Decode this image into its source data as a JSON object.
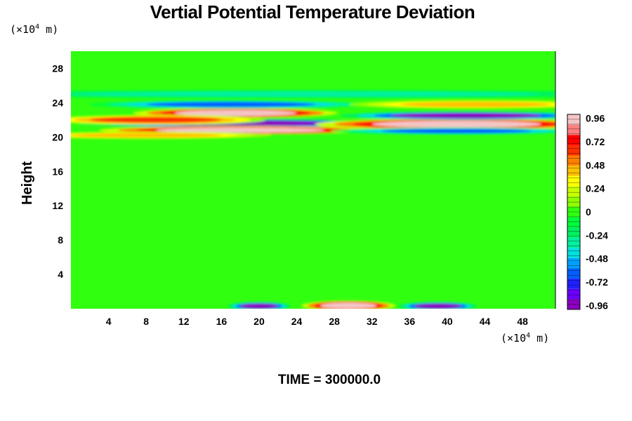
{
  "title": "Vertial Potential Temperature Deviation",
  "time_label": "TIME = 300000.0",
  "chart_data": {
    "type": "heatmap",
    "title": "Vertial Potential Temperature Deviation",
    "xlabel": "",
    "ylabel": "Height",
    "x_unit": {
      "prefix": "(×10",
      "exp": "4",
      "suffix": " m)"
    },
    "y_unit": {
      "prefix": "(×10",
      "exp": "4",
      "suffix": " m)"
    },
    "xlim": [
      0,
      51.5
    ],
    "ylim": [
      0,
      30
    ],
    "x_ticks": [
      4,
      8,
      12,
      16,
      20,
      24,
      28,
      32,
      36,
      40,
      44,
      48
    ],
    "y_ticks": [
      4,
      8,
      12,
      16,
      20,
      24,
      28
    ],
    "background_value": 0,
    "features": [
      {
        "x_center": 17.5,
        "y_center": 22.8,
        "x_halfwidth": 6.5,
        "y_halfwidth": 0.35,
        "value": 0.96
      },
      {
        "x_center": 17.0,
        "y_center": 23.8,
        "x_halfwidth": 9.0,
        "y_halfwidth": 0.3,
        "value": -0.6
      },
      {
        "x_center": 17.5,
        "y_center": 21.6,
        "x_halfwidth": 10.0,
        "y_halfwidth": 0.3,
        "value": -0.96
      },
      {
        "x_center": 18.0,
        "y_center": 20.8,
        "x_halfwidth": 9.0,
        "y_halfwidth": 0.3,
        "value": 0.96
      },
      {
        "x_center": 9.0,
        "y_center": 22.0,
        "x_halfwidth": 7.0,
        "y_halfwidth": 0.35,
        "value": 0.6
      },
      {
        "x_center": 8.0,
        "y_center": 20.2,
        "x_halfwidth": 8.0,
        "y_halfwidth": 0.25,
        "value": 0.4
      },
      {
        "x_center": 41.0,
        "y_center": 21.5,
        "x_halfwidth": 9.0,
        "y_halfwidth": 0.4,
        "value": 0.96
      },
      {
        "x_center": 42.0,
        "y_center": 22.5,
        "x_halfwidth": 8.0,
        "y_halfwidth": 0.3,
        "value": -0.9
      },
      {
        "x_center": 41.0,
        "y_center": 20.7,
        "x_halfwidth": 8.0,
        "y_halfwidth": 0.25,
        "value": -0.6
      },
      {
        "x_center": 43.0,
        "y_center": 23.8,
        "x_halfwidth": 8.0,
        "y_halfwidth": 0.3,
        "value": 0.4
      },
      {
        "x_center": 25.0,
        "y_center": 25.0,
        "x_halfwidth": 25.0,
        "y_halfwidth": 0.3,
        "value": -0.3
      },
      {
        "x_center": 29.5,
        "y_center": 0.35,
        "x_halfwidth": 3.0,
        "y_halfwidth": 0.35,
        "value": 0.96
      },
      {
        "x_center": 20.0,
        "y_center": 0.3,
        "x_halfwidth": 2.0,
        "y_halfwidth": 0.3,
        "value": -0.9
      },
      {
        "x_center": 39.0,
        "y_center": 0.3,
        "x_halfwidth": 2.5,
        "y_halfwidth": 0.3,
        "value": -0.9
      }
    ],
    "colorbar": {
      "min": -1.0,
      "max": 1.0,
      "tick_labels": [
        "0.96",
        "0.72",
        "0.48",
        "0.24",
        "0",
        "-0.24",
        "-0.48",
        "-0.72",
        "-0.96"
      ],
      "tick_values": [
        0.96,
        0.72,
        0.48,
        0.24,
        0,
        -0.24,
        -0.48,
        -0.72,
        -0.96
      ],
      "colors": [
        "#8a00c0",
        "#6a00ff",
        "#2020ff",
        "#0060ff",
        "#00a0ff",
        "#00e0e0",
        "#00f0a0",
        "#00f060",
        "#00ff3a",
        "#30ff10",
        "#90ff00",
        "#c8ff00",
        "#ffff00",
        "#ffc000",
        "#ff8000",
        "#ff3000",
        "#ff0000",
        "#ff8080",
        "#f4c6c6"
      ]
    }
  }
}
